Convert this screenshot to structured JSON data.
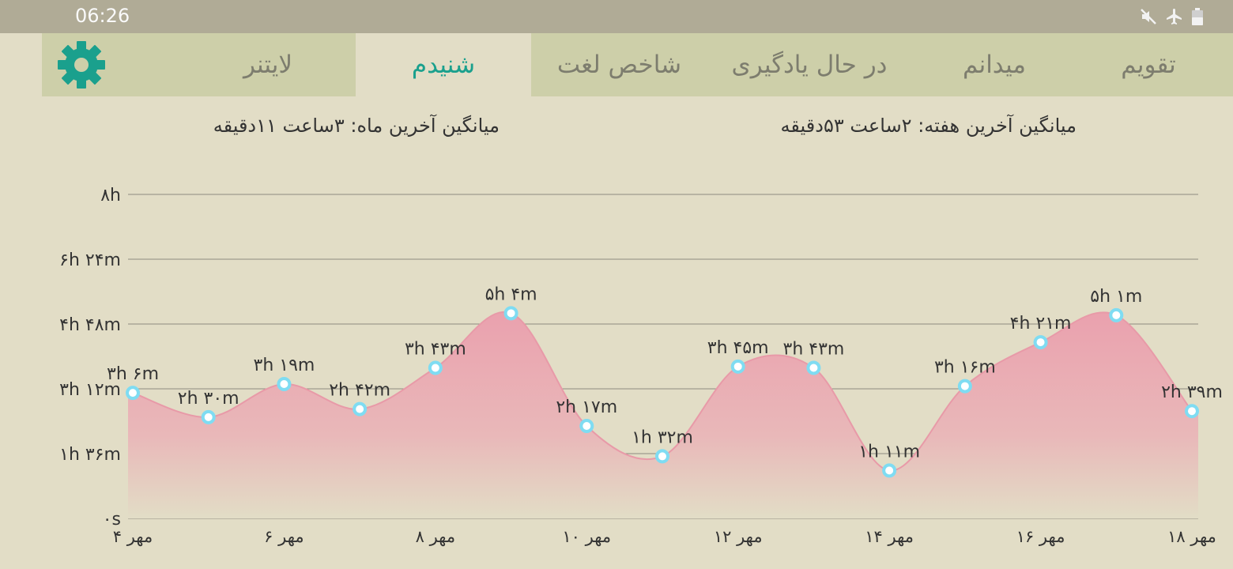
{
  "status_bar": {
    "time": "06:26",
    "icons": [
      "mute-icon",
      "airplane-icon",
      "battery-icon"
    ]
  },
  "tabs": [
    {
      "label": "تقویم",
      "active": false
    },
    {
      "label": "میدانم",
      "active": false
    },
    {
      "label": "در حال یادگیری",
      "active": false
    },
    {
      "label": "شاخص لغت",
      "active": false
    },
    {
      "label": "شنیدم",
      "active": true
    },
    {
      "label": "لایتنر",
      "active": false
    }
  ],
  "settings_icon": "gear-icon",
  "averages": {
    "week": "میانگین آخرین هفته:  ۲ساعت  ۵۳دقیقه",
    "month": "میانگین آخرین ماه:  ۳ساعت  ۱۱دقیقه"
  },
  "colors": {
    "accent": "#1aa08d",
    "background": "#e2ddc6",
    "tab_bar": "#cdcfa9",
    "area_fill": "#eaa6b1",
    "point": "#7fdcf2"
  },
  "chart_data": {
    "type": "area",
    "y_unit": "minutes",
    "ylim": [
      0,
      480
    ],
    "y_ticks": [
      {
        "value": 0,
        "label": "۰s"
      },
      {
        "value": 96,
        "label": "۱h ۳۶m"
      },
      {
        "value": 192,
        "label": "۳h ۱۲m"
      },
      {
        "value": 288,
        "label": "۴h ۴۸m"
      },
      {
        "value": 384,
        "label": "۶h ۲۴m"
      },
      {
        "value": 480,
        "label": "۸h"
      }
    ],
    "x_ticks": [
      {
        "day": 4,
        "label": "۴ مهر"
      },
      {
        "day": 6,
        "label": "۶ مهر"
      },
      {
        "day": 8,
        "label": "۸ مهر"
      },
      {
        "day": 10,
        "label": "۱۰ مهر"
      },
      {
        "day": 12,
        "label": "۱۲ مهر"
      },
      {
        "day": 14,
        "label": "۱۴ مهر"
      },
      {
        "day": 16,
        "label": "۱۶ مهر"
      },
      {
        "day": 18,
        "label": "۱۸ مهر"
      }
    ],
    "grid": true,
    "series": [
      {
        "points": [
          {
            "day": 4,
            "minutes": 186,
            "label": "۳h ۶m"
          },
          {
            "day": 5,
            "minutes": 150,
            "label": "۲h ۳۰m"
          },
          {
            "day": 6,
            "minutes": 199,
            "label": "۳h ۱۹m"
          },
          {
            "day": 7,
            "minutes": 162,
            "label": "۲h ۴۲m"
          },
          {
            "day": 8,
            "minutes": 223,
            "label": "۳h ۴۳m"
          },
          {
            "day": 9,
            "minutes": 304,
            "label": "۵h ۴m"
          },
          {
            "day": 10,
            "minutes": 137,
            "label": "۲h ۱۷m"
          },
          {
            "day": 11,
            "minutes": 92,
            "label": "۱h ۳۲m"
          },
          {
            "day": 12,
            "minutes": 225,
            "label": "۳h ۴۵m"
          },
          {
            "day": 13,
            "minutes": 223,
            "label": "۳h ۴۳m"
          },
          {
            "day": 14,
            "minutes": 71,
            "label": "۱h ۱۱m"
          },
          {
            "day": 15,
            "minutes": 196,
            "label": "۳h ۱۶m"
          },
          {
            "day": 16,
            "minutes": 261,
            "label": "۴h ۲۱m"
          },
          {
            "day": 17,
            "minutes": 301,
            "label": "۵h ۱m"
          },
          {
            "day": 18,
            "minutes": 159,
            "label": "۲h ۳۹m"
          }
        ]
      }
    ]
  }
}
